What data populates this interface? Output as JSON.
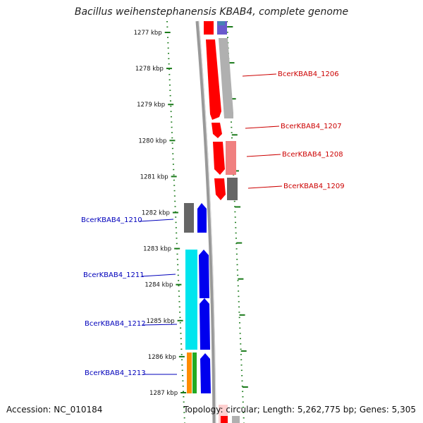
{
  "title": "Bacillus weihenstephanensis KBAB4, complete genome",
  "accession": "Accession: NC_010184",
  "footer_info": "Topology: circular; Length: 5,262,775 bp; Genes: 5,305",
  "ticks": [
    {
      "label": "1277 kbp",
      "pos_kbp": 1277
    },
    {
      "label": "1278 kbp",
      "pos_kbp": 1278
    },
    {
      "label": "1279 kbp",
      "pos_kbp": 1279
    },
    {
      "label": "1280 kbp",
      "pos_kbp": 1280
    },
    {
      "label": "1281 kbp",
      "pos_kbp": 1281
    },
    {
      "label": "1282 kbp",
      "pos_kbp": 1282
    },
    {
      "label": "1283 kbp",
      "pos_kbp": 1283
    },
    {
      "label": "1284 kbp",
      "pos_kbp": 1284
    },
    {
      "label": "1285 kbp",
      "pos_kbp": 1285
    },
    {
      "label": "1286 kbp",
      "pos_kbp": 1286
    },
    {
      "label": "1287 kbp",
      "pos_kbp": 1287
    }
  ],
  "gene_labels": [
    {
      "text": "BcerKBAB4_1206",
      "strand": "forward"
    },
    {
      "text": "BcerKBAB4_1207",
      "strand": "forward"
    },
    {
      "text": "BcerKBAB4_1208",
      "strand": "forward"
    },
    {
      "text": "BcerKBAB4_1209",
      "strand": "forward"
    },
    {
      "text": "BcerKBAB4_1210",
      "strand": "reverse"
    },
    {
      "text": "BcerKBAB4_1211",
      "strand": "reverse"
    },
    {
      "text": "BcerKBAB4_1212",
      "strand": "reverse"
    },
    {
      "text": "BcerKBAB4_1213",
      "strand": "reverse"
    }
  ],
  "colors": {
    "forward_label": "#cc0000",
    "reverse_label": "#0000bb",
    "forward_gene": "#ff0000",
    "reverse_gene": "#0000ee",
    "backbone": "#888888",
    "tick_dots": "#1a7a1a",
    "cyan": "#00e5ee",
    "grey_gene": "#666666",
    "light_grey_gene": "#b0b0b0",
    "pink_gene": "#f08080",
    "orange": "#ff8c00",
    "green": "#22aa22",
    "slate_blue": "#6a5acd",
    "steel_blue": "#4682b4"
  }
}
